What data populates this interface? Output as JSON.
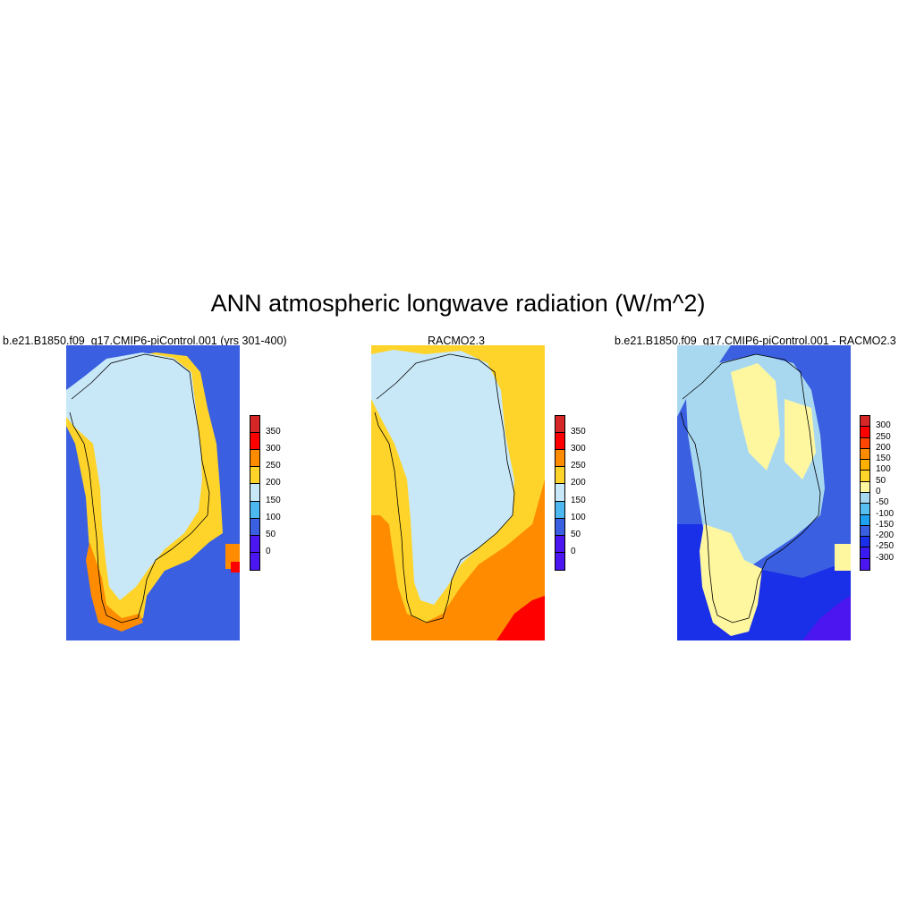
{
  "title": "ANN atmospheric longwave radiation (W/m^2)",
  "panels": [
    {
      "title": "b.e21.B1850.f09_g17.CMIP6-piControl.001 (yrs 301-400)",
      "colorbar": {
        "labels": [
          "350",
          "300",
          "250",
          "200",
          "150",
          "100",
          "50",
          "0"
        ],
        "colors": [
          "#d62728",
          "#ff0000",
          "#ff8c00",
          "#ffd42a",
          "#c8e8f8",
          "#4db8f0",
          "#3a5fe0",
          "#4b16f0",
          "#4b16f0"
        ]
      },
      "colors": {
        "ocean": "#3a5fe0",
        "coast": "#ffd42a",
        "interior": "#c8e8f8",
        "south": "#ff8c00"
      }
    },
    {
      "title": "RACMO2.3",
      "colorbar": {
        "labels": [
          "350",
          "300",
          "250",
          "200",
          "150",
          "100",
          "50",
          "0"
        ],
        "colors": [
          "#d62728",
          "#ff0000",
          "#ff8c00",
          "#ffd42a",
          "#c8e8f8",
          "#4db8f0",
          "#3a5fe0",
          "#4b16f0",
          "#4b16f0"
        ]
      },
      "colors": {
        "ocean": "#ff8c00",
        "coast": "#ffd42a",
        "interior": "#c8e8f8",
        "south": "#ff0000"
      }
    },
    {
      "title": "b.e21.B1850.f09_g17.CMIP6-piControl.001 - RACMO2.3",
      "colorbar": {
        "labels": [
          "300",
          "250",
          "200",
          "150",
          "100",
          "50",
          "0",
          "-50",
          "-100",
          "-150",
          "-200",
          "-250",
          "-300"
        ],
        "colors": [
          "#d62728",
          "#ff0000",
          "#ff4500",
          "#ff8c00",
          "#ffb000",
          "#ffd42a",
          "#fff7a0",
          "#a8d8f0",
          "#58c0f0",
          "#1fa0f0",
          "#3a5fe0",
          "#1a2fe8",
          "#3a1af0",
          "#4b16f0"
        ]
      },
      "colors": {
        "ocean": "#3a5fe0",
        "coast": "#a8d8f0",
        "interior": "#a8d8f0",
        "south": "#fff7a0"
      }
    }
  ]
}
